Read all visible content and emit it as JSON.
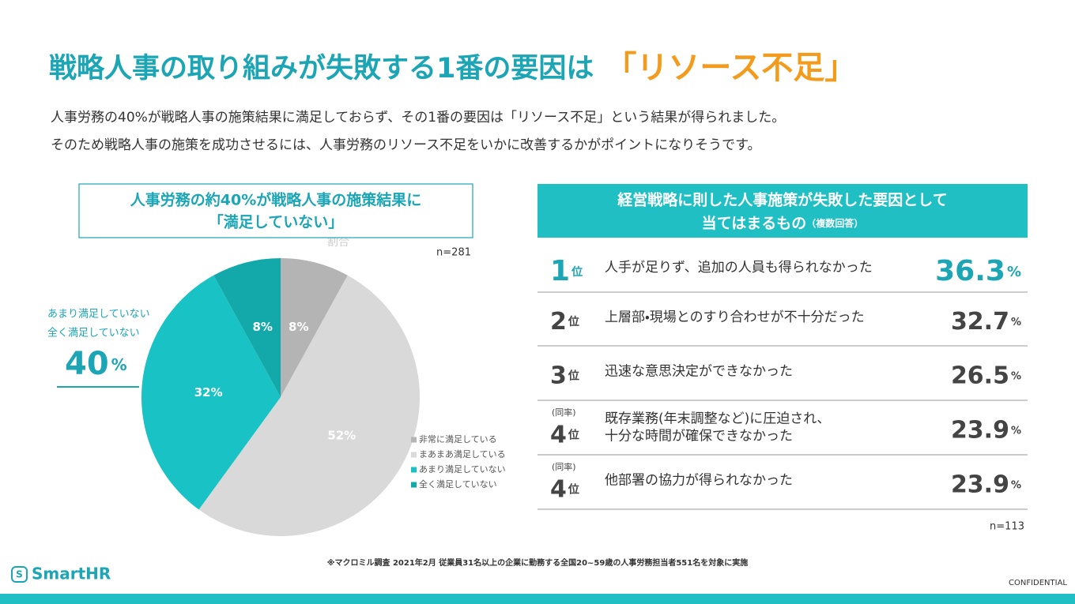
{
  "header": {
    "title": "戦略人事の取り組みが失敗する1番の要因は",
    "title_highlight": "「リソース不足」",
    "lines": [
      "人事労務の40%が戦略人事の施策結果に満足しておらず、その1番の要因は「リソース不足」という結果が得られました。",
      "そのため戦略人事の施策を成功させるには、人事労務のリソース不足をいかに改善するかがポイントになりそうです。"
    ]
  },
  "left_panel": {
    "box_lines": [
      "人事労務の約40%が戦略人事の施策結果に",
      "「満足していない」"
    ],
    "callout_lines": [
      "あまり満足していない",
      "全く満足していない"
    ],
    "callout_value": "40",
    "callout_unit": "%"
  },
  "chart_data": {
    "type": "pie",
    "title": "割合",
    "subtitle": "n=281",
    "categories": [
      "非常に満足している",
      "まあまあ満足している",
      "あまり満足していない",
      "全く満足していない"
    ],
    "values": [
      8,
      52,
      32,
      8
    ],
    "value_labels": [
      "8%",
      "52%",
      "32%",
      "8%"
    ],
    "colors": [
      "#b4b4b4",
      "#d9d9d9",
      "#19c3c5",
      "#13a9ab"
    ],
    "legend": "right"
  },
  "ranking": {
    "header_lines": [
      "経営戦略に則した人事施策が失敗した要因として",
      "当てはまるもの"
    ],
    "header_note": "（複数回答）",
    "rank_suffix": "位",
    "unit": "%",
    "tie_label": "(同率)",
    "rows": [
      {
        "rank": 1,
        "tie": false,
        "text": [
          "人手が足りず、追加の人員も得られなかった"
        ],
        "value": 36.3
      },
      {
        "rank": 2,
        "tie": false,
        "text": [
          "上層部・現場とのすり合わせが不十分だった"
        ],
        "value": 32.7
      },
      {
        "rank": 3,
        "tie": false,
        "text": [
          "迅速な意思決定ができなかった"
        ],
        "value": 26.5
      },
      {
        "rank": 4,
        "tie": true,
        "text": [
          "既存業務(年末調整など)に圧迫され、",
          "十分な時間が確保できなかった"
        ],
        "value": 23.9
      },
      {
        "rank": 4,
        "tie": true,
        "text": [
          "他部署の協力が得られなかった"
        ],
        "value": 23.9
      }
    ],
    "sample": "n=113"
  },
  "footer": {
    "note": "※マクロミル調査 2021年2月 従業員31名以上の企業に勤務する全国20~59歳の人事労務担当者551名を対象に実施",
    "logo": "SmartHR",
    "confidential": "CONFIDENTIAL"
  }
}
